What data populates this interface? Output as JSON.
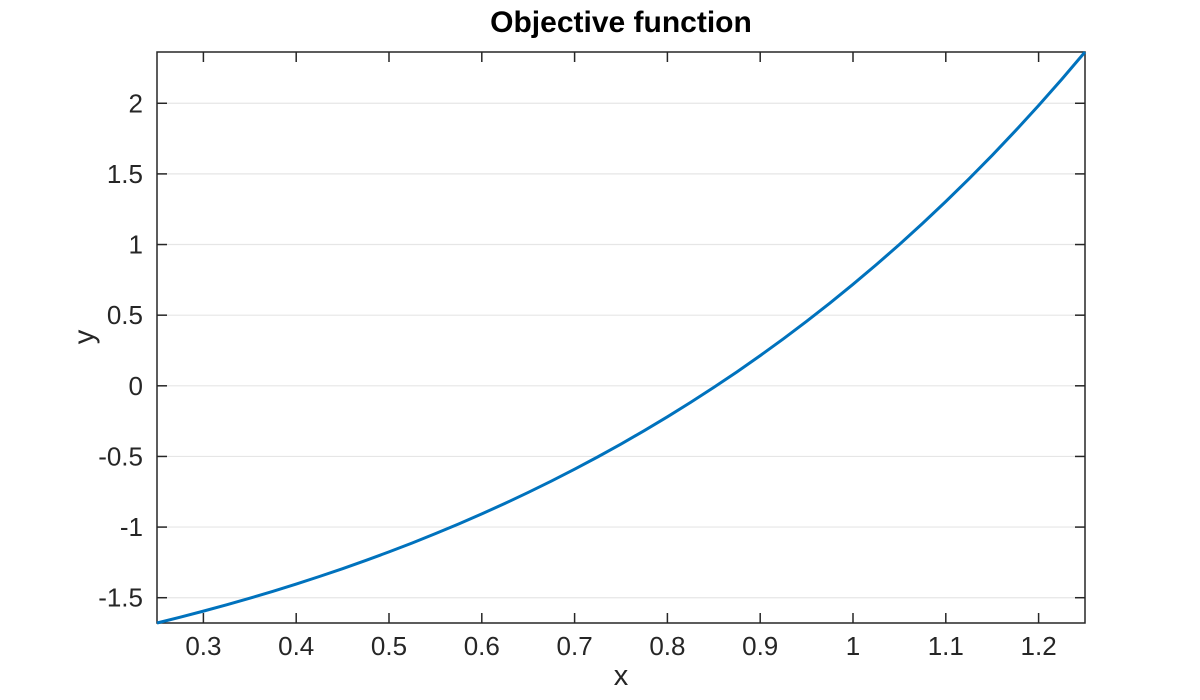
{
  "chart_data": {
    "type": "line",
    "title": "Objective function",
    "xlabel": "x",
    "ylabel": "y",
    "xlim": [
      0.25,
      1.25
    ],
    "ylim": [
      -1.679,
      2.3629
    ],
    "grid": "horizontal-only",
    "legend": "none",
    "xticks": {
      "values": [
        0.3,
        0.4,
        0.5,
        0.6,
        0.7,
        0.8,
        0.9,
        1.0,
        1.1,
        1.2
      ],
      "labels": [
        "0.3",
        "0.4",
        "0.5",
        "0.6",
        "0.7",
        "0.8",
        "0.9",
        "1",
        "1.1",
        "1.2"
      ]
    },
    "yticks": {
      "values": [
        -1.5,
        -1.0,
        -0.5,
        0.0,
        0.5,
        1.0,
        1.5,
        2.0
      ],
      "labels": [
        "-1.5",
        "-1",
        "-0.5",
        "0",
        "0.5",
        "1",
        "1.5",
        "2"
      ]
    },
    "colors": {
      "line": "#0072BD",
      "axis": "#262626",
      "grid": "#e6e6e6",
      "title": "#000000",
      "background": "#ffffff"
    },
    "line_width": 3,
    "series": [
      {
        "name": "objective-function-curve",
        "x": [
          0.25,
          0.275,
          0.3,
          0.325,
          0.35,
          0.375,
          0.4,
          0.425,
          0.45,
          0.475,
          0.5,
          0.525,
          0.55,
          0.575,
          0.6,
          0.625,
          0.65,
          0.675,
          0.7,
          0.725,
          0.75,
          0.775,
          0.8,
          0.825,
          0.85,
          0.875,
          0.9,
          0.925,
          0.95,
          0.975,
          1.0,
          1.025,
          1.05,
          1.075,
          1.1,
          1.125,
          1.15,
          1.175,
          1.2,
          1.225,
          1.25
        ],
        "y": [
          -1.679,
          -1.638,
          -1.595,
          -1.5502,
          -1.5033,
          -1.4544,
          -1.4033,
          -1.3499,
          -1.2943,
          -1.2362,
          -1.1756,
          -1.1125,
          -1.0467,
          -0.9781,
          -0.9067,
          -0.8323,
          -0.7549,
          -0.6743,
          -0.5904,
          -0.5031,
          -0.4122,
          -0.3178,
          -0.2196,
          -0.1174,
          -0.0113,
          0.099,
          0.2136,
          0.3327,
          0.4564,
          0.5849,
          0.7183,
          0.8568,
          1.0005,
          1.1497,
          1.3046,
          1.4652,
          1.6319,
          1.8048,
          1.9841,
          2.1701,
          2.3629
        ]
      }
    ]
  }
}
